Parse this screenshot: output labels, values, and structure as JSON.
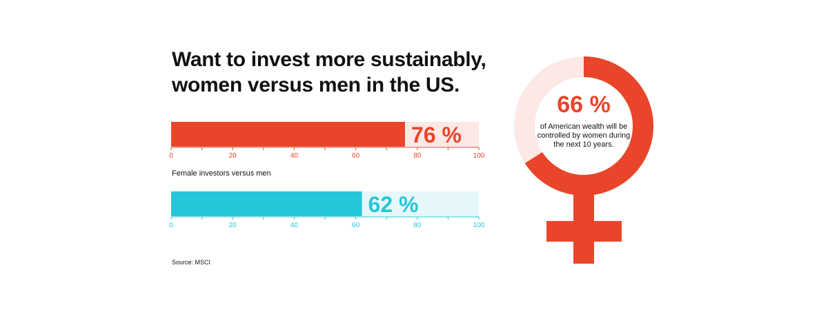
{
  "title_lines": [
    "Want to invest more sustainably,",
    "women versus men in the US."
  ],
  "chart_data": [
    {
      "type": "bar",
      "orientation": "horizontal",
      "values": [
        76
      ],
      "value_label": "76 %",
      "xlim": [
        0,
        100
      ],
      "ticks": [
        "0",
        "20",
        "40",
        "60",
        "80",
        "100"
      ],
      "colors": {
        "bar": "#e8452a",
        "track": "#fce8e4",
        "axis": "#e8452a",
        "label": "#e8452a"
      }
    },
    {
      "type": "bar",
      "orientation": "horizontal",
      "values": [
        62
      ],
      "value_label": "62 %",
      "xlim": [
        0,
        100
      ],
      "ticks": [
        "0",
        "20",
        "40",
        "60",
        "80",
        "100"
      ],
      "colors": {
        "bar": "#26c6da",
        "track": "#e6f7fb",
        "axis": "#26c6da",
        "label": "#26c6da"
      }
    }
  ],
  "female_label": "Female investors versus men",
  "source": "Source: MSCI",
  "venus": {
    "value": 66,
    "value_label": "66 %",
    "description": "of American wealth will be controlled by women during the next 10 years.",
    "colors": {
      "ring": "#e8452a",
      "ring_track": "#fce8e4"
    }
  }
}
